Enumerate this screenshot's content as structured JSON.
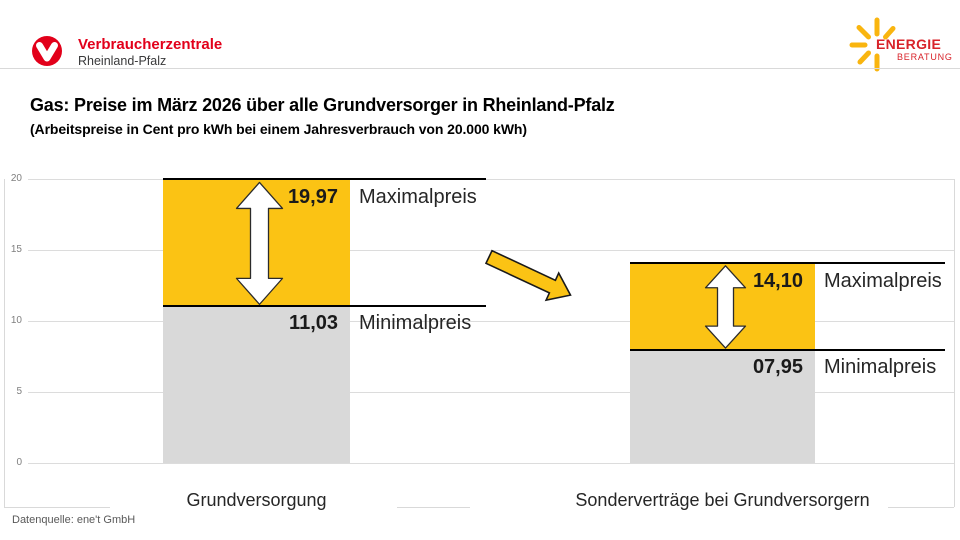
{
  "header": {
    "brand": {
      "name": "Verbraucherzentrale",
      "region": "Rheinland-Pfalz"
    },
    "energy_logo": {
      "top": "ENERGIE",
      "bottom": "BERATUNG"
    }
  },
  "title": "Gas: Preise im März 2026 über alle Grundversorger in Rheinland-Pfalz",
  "subtitle": "(Arbeitspreise in Cent pro kWh bei einem Jahresverbrauch von 20.000 kWh)",
  "source": "Datenquelle: ene't GmbH",
  "colors": {
    "brand_red": "#e2001a",
    "accent_yellow": "#fbc314",
    "bar_gray": "#d9d9d9",
    "boundary_black": "#000000",
    "sun_yellow": "#f9b50f"
  },
  "chart_data": {
    "type": "bar",
    "title": "Gas: Preise im März 2026 über alle Grundversorger in Rheinland-Pfalz",
    "subtitle": "(Arbeitspreise in Cent pro kWh bei einem Jahresverbrauch von 20.000 kWh)",
    "unit": "Cent pro kWh",
    "ylim": [
      0,
      20
    ],
    "yticks": [
      0,
      5,
      10,
      15,
      20
    ],
    "grid": true,
    "legend_position": "none",
    "categories": [
      "Grundversorgung",
      "Sonderverträge bei Grundversorgern"
    ],
    "series": [
      {
        "name": "Minimalpreis",
        "values": [
          11.03,
          7.95
        ]
      },
      {
        "name": "Maximalpreis",
        "values": [
          19.97,
          14.1
        ]
      }
    ],
    "bars": [
      {
        "category": "Grundversorgung",
        "max": 19.97,
        "max_label": "19,97",
        "max_caption": "Maximalpreis",
        "min": 11.03,
        "min_label": "11,03",
        "min_caption": "Minimalpreis"
      },
      {
        "category": "Sonderverträge bei Grundversorgern",
        "max": 14.1,
        "max_label": "14,10",
        "max_caption": "Maximalpreis",
        "min": 7.95,
        "min_label": "07,95",
        "min_caption": "Minimalpreis"
      }
    ],
    "annotations": [
      "white double arrows mark min-max spread",
      "yellow arrow indicates decrease from Grundversorgung to Sonderverträge"
    ]
  }
}
